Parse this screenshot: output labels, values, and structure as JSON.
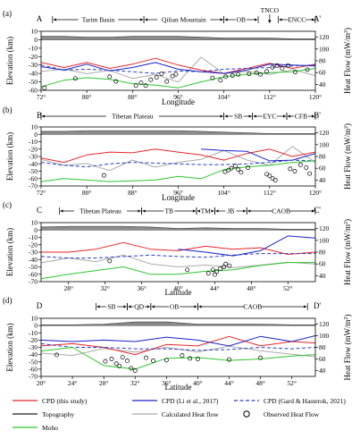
{
  "panels": [
    {
      "id": "a",
      "letter": "(a)",
      "start_label": "A",
      "end_label": "A'",
      "xlabel": "Longitude",
      "x_ticks": [
        "72°",
        "80°",
        "88°",
        "96°",
        "104°",
        "112°",
        "120°"
      ],
      "x_range": [
        72,
        120
      ],
      "y_ticks": [
        "10",
        "0",
        "-10",
        "-20",
        "-30",
        "-40",
        "-50",
        "-60"
      ],
      "y_range": [
        -60,
        10
      ],
      "hf_ticks": [
        "120",
        "100",
        "80",
        "60",
        "40"
      ],
      "hf_range": [
        30,
        130
      ],
      "regions": [
        {
          "label": "Tarim Basin",
          "from": 74,
          "to": 90
        },
        {
          "label": "Qilian Mountain",
          "from": 90,
          "to": 104
        },
        {
          "label": "OB",
          "from": 104,
          "to": 110
        },
        {
          "label": "ENCC",
          "from": 113.5,
          "to": 120
        }
      ],
      "marker": {
        "label": "TNCO",
        "at": 112
      }
    },
    {
      "id": "b",
      "letter": "(b)",
      "start_label": "B",
      "end_label": "B'",
      "xlabel": "Longitude",
      "x_ticks": [
        "72°",
        "80°",
        "88°",
        "96°",
        "104°",
        "112°",
        "120°"
      ],
      "x_range": [
        72,
        120
      ],
      "y_ticks": [
        "10",
        "0",
        "-10",
        "-20",
        "-30",
        "-40",
        "-50",
        "-60",
        "-70"
      ],
      "y_range": [
        -70,
        10
      ],
      "hf_ticks": [
        "120",
        "100",
        "80",
        "60",
        "40"
      ],
      "hf_range": [
        30,
        130
      ],
      "regions": [
        {
          "label": "Tibetan Plateau",
          "from": 72,
          "to": 104
        },
        {
          "label": "SB",
          "from": 104,
          "to": 109
        },
        {
          "label": "EYC",
          "from": 109,
          "to": 115
        },
        {
          "label": "CFB",
          "from": 115,
          "to": 120
        }
      ]
    },
    {
      "id": "c",
      "letter": "(c)",
      "start_label": "C",
      "end_label": "C'",
      "xlabel": "Latitude",
      "x_ticks": [
        "28°",
        "32°",
        "36°",
        "40°",
        "44°",
        "48°",
        "52°"
      ],
      "x_range": [
        25,
        55
      ],
      "y_ticks": [
        "10",
        "0",
        "-10",
        "-20",
        "-30",
        "-40",
        "-50",
        "-60",
        "-70"
      ],
      "y_range": [
        -70,
        10
      ],
      "hf_ticks": [
        "120",
        "100",
        "80",
        "60",
        "40"
      ],
      "hf_range": [
        30,
        130
      ],
      "regions": [
        {
          "label": "Tibetan Plateau",
          "from": 27,
          "to": 36
        },
        {
          "label": "TB",
          "from": 36,
          "to": 42
        },
        {
          "label": "TM",
          "from": 42,
          "to": 44
        },
        {
          "label": "JB",
          "from": 44,
          "to": 47.5
        },
        {
          "label": "CAOB",
          "from": 47.5,
          "to": 55
        }
      ]
    },
    {
      "id": "d",
      "letter": "(d)",
      "start_label": "D",
      "end_label": "D'",
      "xlabel": "Latitude",
      "x_ticks": [
        "20°",
        "24°",
        "28°",
        "32°",
        "36°",
        "40°",
        "44°",
        "48°",
        "52°"
      ],
      "x_range": [
        20,
        55
      ],
      "y_ticks": [
        "10",
        "0",
        "-10",
        "-20",
        "-30",
        "-40",
        "-50",
        "-60",
        "-70"
      ],
      "y_range": [
        -70,
        10
      ],
      "hf_ticks": [
        "120",
        "100",
        "80",
        "60",
        "40"
      ],
      "hf_range": [
        30,
        130
      ],
      "regions": [
        {
          "label": "SB",
          "from": 27,
          "to": 31
        },
        {
          "label": "QD",
          "from": 31,
          "to": 34
        },
        {
          "label": "OB",
          "from": 34,
          "to": 40
        },
        {
          "label": "CAOB",
          "from": 40,
          "to": 54
        }
      ]
    }
  ],
  "axis_labels": {
    "left": "Elevation (km)",
    "right_prefix": "Heat Flow (mW/m",
    "right_suffix": ")"
  },
  "legend": [
    {
      "key": "cpd_this",
      "label": "CPD (this study)",
      "color": "#e8262b",
      "style": "solid"
    },
    {
      "key": "cpd_li",
      "label": "CPD (Li et al., 2017)",
      "color": "#1a22c8",
      "style": "solid"
    },
    {
      "key": "cpd_gard",
      "label": "CPD (Gard & Hasterok, 2021)",
      "color": "#2a3fc4",
      "style": "dashed"
    },
    {
      "key": "topo",
      "label": "Topography",
      "color": "#222222",
      "style": "solid"
    },
    {
      "key": "calc_hf",
      "label": "Calculated Heat flow",
      "color": "#aaaaaa",
      "style": "solid"
    },
    {
      "key": "obs_hf",
      "label": "Observed Heat Flow",
      "color": "#000000",
      "style": "circle"
    },
    {
      "key": "moho",
      "label": "Moho",
      "color": "#2fc62f",
      "style": "solid"
    }
  ],
  "colors": {
    "topo_fill": "#8c8c8c",
    "grid": "#000000"
  },
  "chart_data": [
    {
      "type": "line",
      "panel": "a",
      "x": [
        72,
        76,
        80,
        84,
        88,
        92,
        96,
        100,
        104,
        108,
        112,
        116,
        120
      ],
      "series": [
        {
          "name": "CPD (this study)",
          "key": "cpd_this",
          "values": [
            -27,
            -33,
            -27,
            -34,
            -29,
            -22,
            -30,
            -36,
            -40,
            -34,
            -28,
            -34,
            -29
          ]
        },
        {
          "name": "CPD (Li et al., 2017)",
          "key": "cpd_li",
          "values": [
            -32,
            -36,
            -29,
            -37,
            -33,
            -27,
            -35,
            -38,
            -40,
            -36,
            -29,
            -30,
            -31
          ]
        },
        {
          "name": "CPD (Gard & Hasterok, 2021)",
          "key": "cpd_gard",
          "values": [
            -30,
            -36,
            -35,
            -36,
            -38,
            -40,
            -37,
            -38,
            -35,
            -34,
            -33,
            -31,
            -30
          ]
        },
        {
          "name": "Moho",
          "key": "moho",
          "values": [
            -56,
            -48,
            -45,
            -47,
            -52,
            -54,
            -57,
            -50,
            -44,
            -41,
            -39,
            -38,
            -34
          ]
        },
        {
          "name": "Topography",
          "key": "topo",
          "values": [
            4,
            4,
            3,
            3,
            4,
            4,
            4,
            3,
            2,
            2,
            2,
            1,
            1
          ]
        }
      ],
      "calc_hf": [
        62,
        66,
        58,
        64,
        50,
        57,
        44,
        86,
        58,
        62,
        57,
        65,
        55
      ],
      "obs_hf": [
        [
          72.6,
          34
        ],
        [
          78,
          50
        ],
        [
          84,
          53
        ],
        [
          85.1,
          45
        ],
        [
          88.6,
          38
        ],
        [
          89.5,
          43
        ],
        [
          90.3,
          38
        ],
        [
          91.2,
          48
        ],
        [
          92.2,
          52
        ],
        [
          93.1,
          58
        ],
        [
          94,
          45
        ],
        [
          95,
          54
        ],
        [
          95.6,
          57
        ],
        [
          102,
          51
        ],
        [
          103.4,
          47
        ],
        [
          104.3,
          53
        ],
        [
          105.5,
          55
        ],
        [
          106.5,
          57
        ],
        [
          108.4,
          58
        ],
        [
          109.7,
          60
        ],
        [
          110.4,
          57
        ],
        [
          111.5,
          62
        ],
        [
          112.5,
          69
        ],
        [
          113.3,
          72
        ],
        [
          114.2,
          67
        ],
        [
          115.2,
          72
        ],
        [
          116.5,
          61
        ],
        [
          118.6,
          65
        ]
      ]
    },
    {
      "type": "line",
      "panel": "b",
      "x": [
        72,
        76,
        80,
        84,
        88,
        92,
        96,
        100,
        104,
        108,
        112,
        116,
        120
      ],
      "series": [
        {
          "name": "CPD (this study)",
          "key": "cpd_this",
          "values": [
            -32,
            -38,
            -28,
            -24,
            -25,
            -20,
            -24,
            -28,
            -35,
            -26,
            -20,
            -30,
            -24
          ]
        },
        {
          "name": "CPD (Li et al., 2017)",
          "key": "cpd_li",
          "values": [
            null,
            null,
            null,
            null,
            null,
            null,
            null,
            -20,
            -22,
            -23,
            -36,
            -35,
            -26
          ]
        },
        {
          "name": "CPD (Gard & Hasterok, 2021)",
          "key": "cpd_gard",
          "values": [
            -38,
            -42,
            -44,
            -40,
            -38,
            -39,
            -40,
            -41,
            -41,
            -40,
            -38,
            -35,
            -36
          ]
        },
        {
          "name": "Moho",
          "key": "moho",
          "values": [
            -64,
            -60,
            -62,
            -64,
            -63,
            -62,
            -57,
            -60,
            -48,
            -44,
            -42,
            -38,
            -36
          ]
        },
        {
          "name": "Topography",
          "key": "topo",
          "values": [
            4,
            4,
            5,
            5,
            5,
            5,
            5,
            4,
            3,
            2,
            1,
            1,
            1
          ]
        }
      ],
      "calc_hf": [
        75,
        65,
        68,
        56,
        74,
        62,
        70,
        75,
        90,
        74,
        65,
        97,
        70
      ],
      "obs_hf": [
        [
          83,
          48
        ],
        [
          104.2,
          54
        ],
        [
          104.8,
          57
        ],
        [
          105.3,
          60
        ],
        [
          106,
          64
        ],
        [
          106.5,
          58
        ],
        [
          107,
          53
        ],
        [
          108.2,
          61
        ],
        [
          111.5,
          50
        ],
        [
          112,
          47
        ],
        [
          112.5,
          43
        ],
        [
          113,
          40
        ],
        [
          115.6,
          59
        ],
        [
          116.4,
          55
        ],
        [
          117.4,
          66
        ],
        [
          118.4,
          61
        ],
        [
          119,
          51
        ]
      ]
    },
    {
      "type": "line",
      "panel": "c",
      "x": [
        25,
        28,
        31,
        34,
        37,
        40,
        43,
        46,
        49,
        52,
        55
      ],
      "series": [
        {
          "name": "CPD (this study)",
          "key": "cpd_this",
          "values": [
            -30,
            -30,
            -26,
            -17,
            -26,
            -28,
            -22,
            -26,
            -24,
            -33,
            -30
          ]
        },
        {
          "name": "CPD (Li et al., 2017)",
          "key": "cpd_li",
          "values": [
            null,
            null,
            null,
            null,
            null,
            -26,
            -30,
            -35,
            -28,
            -8,
            -11
          ]
        },
        {
          "name": "CPD (Gard & Hasterok, 2021)",
          "key": "cpd_gard",
          "values": [
            -36,
            -38,
            -38,
            -36,
            -34,
            -36,
            -37,
            -34,
            -32,
            -32,
            -32
          ]
        },
        {
          "name": "Moho",
          "key": "moho",
          "values": [
            -66,
            -60,
            -55,
            -50,
            -60,
            -60,
            -56,
            -54,
            -48,
            -44,
            -44
          ]
        },
        {
          "name": "Topography",
          "key": "topo",
          "values": [
            4,
            5,
            5,
            5,
            4,
            2,
            3,
            2,
            2,
            1,
            1
          ]
        }
      ],
      "calc_hf": [
        62,
        70,
        64,
        75,
        60,
        55,
        58,
        54,
        58,
        63,
        60
      ],
      "obs_hf": [
        [
          32.5,
          65
        ],
        [
          41,
          50
        ],
        [
          43.3,
          44
        ],
        [
          44.2,
          47
        ],
        [
          44.6,
          52
        ],
        [
          45,
          55
        ],
        [
          45.2,
          60
        ],
        [
          44,
          42
        ],
        [
          45.6,
          57
        ],
        [
          43.8,
          50
        ]
      ]
    },
    {
      "type": "line",
      "panel": "d",
      "x": [
        20,
        24,
        28,
        32,
        36,
        40,
        44,
        48,
        52,
        55
      ],
      "series": [
        {
          "name": "CPD (this study)",
          "key": "cpd_this",
          "values": [
            -28,
            -25,
            -30,
            -40,
            -26,
            -28,
            -15,
            -28,
            -22,
            -24
          ]
        },
        {
          "name": "CPD (Li et al., 2017)",
          "key": "cpd_li",
          "values": [
            -20,
            -22,
            -20,
            -22,
            -16,
            -20,
            -28,
            -15,
            -22,
            -14
          ]
        },
        {
          "name": "CPD (Gard & Hasterok, 2021)",
          "key": "cpd_gard",
          "values": [
            -25,
            -30,
            -30,
            -32,
            -32,
            -34,
            -33,
            -30,
            -32,
            -30
          ]
        },
        {
          "name": "Moho",
          "key": "moho",
          "values": [
            -35,
            -30,
            -55,
            -60,
            -45,
            -44,
            -48,
            -46,
            -42,
            -40
          ]
        },
        {
          "name": "Topography",
          "key": "topo",
          "values": [
            1,
            1,
            2,
            5,
            5,
            2,
            2,
            2,
            1,
            1
          ]
        }
      ],
      "calc_hf": [
        70,
        66,
        78,
        72,
        80,
        72,
        82,
        74,
        68,
        64
      ],
      "obs_hf": [
        [
          22,
          67
        ],
        [
          28.2,
          56
        ],
        [
          29,
          60
        ],
        [
          29.6,
          52
        ],
        [
          30,
          48
        ],
        [
          30.4,
          63
        ],
        [
          31,
          57
        ],
        [
          31.5,
          44
        ],
        [
          32,
          40
        ],
        [
          33.4,
          62
        ],
        [
          34.3,
          57
        ],
        [
          36,
          58
        ],
        [
          38,
          66
        ],
        [
          39,
          61
        ],
        [
          40,
          60
        ],
        [
          44,
          59
        ],
        [
          48,
          62
        ]
      ]
    }
  ]
}
